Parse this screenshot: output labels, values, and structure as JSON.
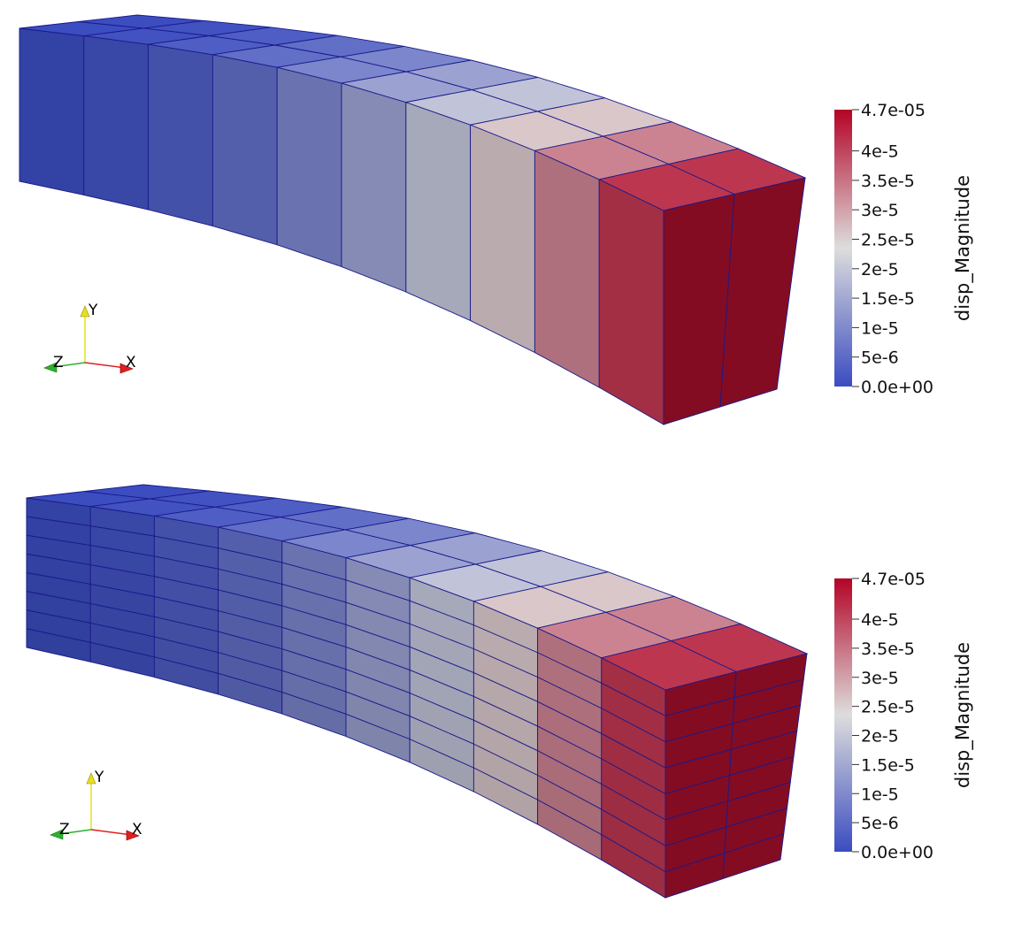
{
  "panels": [
    {
      "id": "coarse-mesh",
      "mesh": {
        "length_divisions": 10,
        "depth_divisions": 2,
        "height_divisions": 1
      },
      "axes": {
        "x": "X",
        "y": "Y",
        "z": "Z"
      },
      "colorbar": {
        "title": "disp_Magnitude",
        "ticks": [
          "4.7e-05",
          "4e-5",
          "3.5e-5",
          "3e-5",
          "2.5e-5",
          "2e-5",
          "1.5e-5",
          "1e-5",
          "5e-6",
          "0.0e+00"
        ],
        "tick_values": [
          4.7e-05,
          4e-05,
          3.5e-05,
          3e-05,
          2.5e-05,
          2e-05,
          1.5e-05,
          1e-05,
          5e-06,
          0
        ],
        "range": [
          0,
          4.7e-05
        ]
      }
    },
    {
      "id": "refined-mesh",
      "mesh": {
        "length_divisions": 10,
        "depth_divisions": 2,
        "height_divisions": 8
      },
      "axes": {
        "x": "X",
        "y": "Y",
        "z": "Z"
      },
      "colorbar": {
        "title": "disp_Magnitude",
        "ticks": [
          "4.7e-05",
          "4e-5",
          "3.5e-5",
          "3e-5",
          "2.5e-5",
          "2e-5",
          "1.5e-5",
          "1e-5",
          "5e-6",
          "0.0e+00"
        ],
        "tick_values": [
          4.7e-05,
          4e-05,
          3.5e-05,
          3e-05,
          2.5e-05,
          2e-05,
          1.5e-05,
          1e-05,
          5e-06,
          0
        ],
        "range": [
          0,
          4.7e-05
        ]
      }
    }
  ],
  "colormap": {
    "name": "Cool to Warm",
    "low": "#3b4cc0",
    "mid": "#dddddd",
    "high": "#b40426"
  },
  "colors": {
    "mesh_edges": "#1a1a8c",
    "axis_x": "#e02020",
    "axis_y": "#e8e020",
    "axis_z": "#30b030"
  }
}
